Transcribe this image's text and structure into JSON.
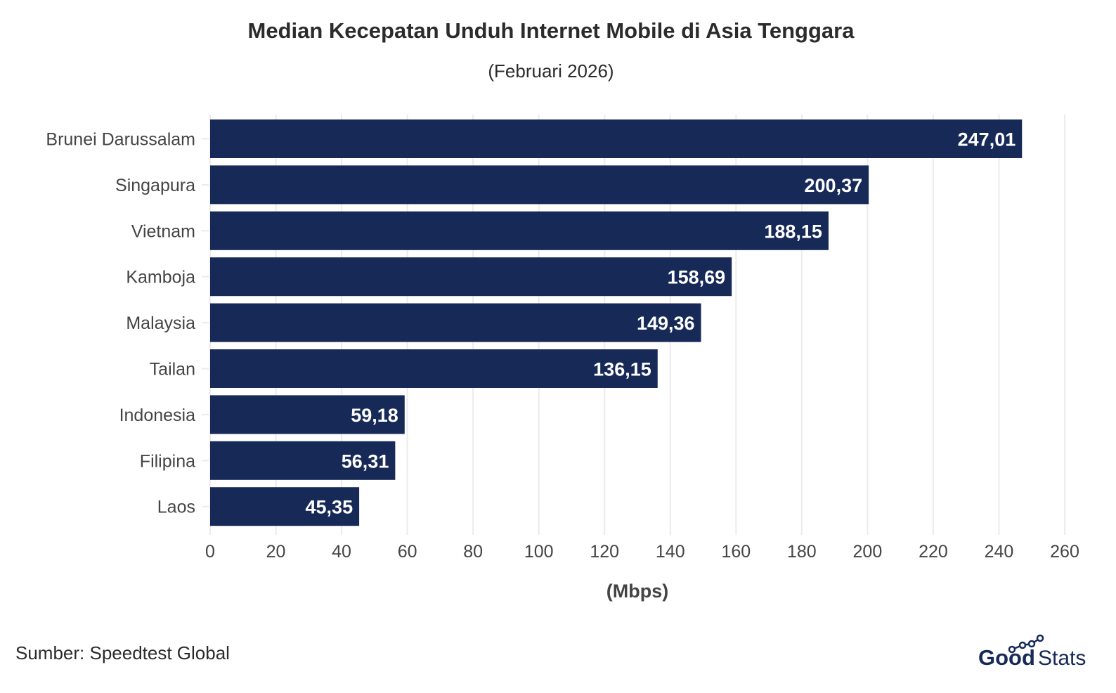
{
  "chart_data": {
    "type": "bar",
    "orientation": "horizontal",
    "title": "Median Kecepatan Unduh Internet Mobile di Asia Tenggara",
    "subtitle": "(Februari 2026)",
    "xlabel": "(Mbps)",
    "ylabel": "",
    "categories": [
      "Brunei Darussalam",
      "Singapura",
      "Vietnam",
      "Kamboja",
      "Malaysia",
      "Tailan",
      "Indonesia",
      "Filipina",
      "Laos"
    ],
    "values": [
      247.01,
      200.37,
      188.15,
      158.69,
      149.36,
      136.15,
      59.18,
      56.31,
      45.35
    ],
    "data_labels": [
      "247,01",
      "200,37",
      "188,15",
      "158,69",
      "149,36",
      "136,15",
      "59,18",
      "56,31",
      "45,35"
    ],
    "xlim": [
      0,
      260
    ],
    "xticks": [
      0,
      20,
      40,
      60,
      80,
      100,
      120,
      140,
      160,
      180,
      200,
      220,
      240,
      260
    ],
    "grid": true,
    "bar_color": "#162957",
    "label_color": "#ffffff"
  },
  "source": "Sumber: Speedtest Global",
  "logo": {
    "text_bold": "Good",
    "text_light": "Stats",
    "color": "#162957"
  }
}
